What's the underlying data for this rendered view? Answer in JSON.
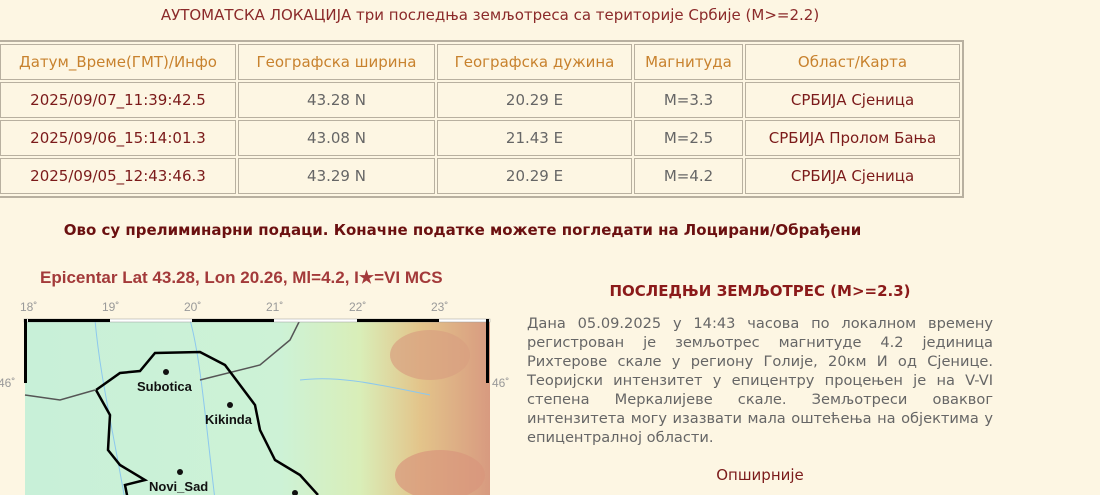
{
  "header": {
    "title": "АУТОМАТСКА ЛОКАЦИЈА три последња земљотреса са територије Србије (М>=2.2)"
  },
  "table": {
    "columns": [
      "Датум_Време(ГМТ)/Инфо",
      "Географска ширина",
      "Географска дужина",
      "Магнитуда",
      "Област/Карта"
    ],
    "rows": [
      [
        "2025/09/07_11:39:42.5",
        "43.28 N",
        "20.29 E",
        "M=3.3",
        "СРБИЈА Сјеница"
      ],
      [
        "2025/09/06_15:14:01.3",
        "43.08 N",
        "21.43 E",
        "M=2.5",
        "СРБИЈА Пролом Бања"
      ],
      [
        "2025/09/05_12:43:46.3",
        "43.29 N",
        "20.29 E",
        "M=4.2",
        "СРБИЈА Сјеница"
      ]
    ]
  },
  "note": "Ово су прелиминарни подаци. Коначне податке можете погледати на Лоцирани/Обрађени",
  "map": {
    "title": "Epicentar Lat 43.28, Lon 20.26, Ml=4.2, I★=VI MCS",
    "lon_ticks": [
      "18˚",
      "19˚",
      "20˚",
      "21˚",
      "22˚",
      "23˚"
    ],
    "lat_label": "46˚",
    "cities": [
      "Subotica",
      "Kikinda",
      "Novi_Sad"
    ]
  },
  "last": {
    "heading": "ПОСЛЕДЊИ ЗЕМЉОТРЕС (М>=2.3)",
    "text": "Дана 05.09.2025 у 14:43 часова по локалном времену регистрован је земљотрес магнитуде 4.2 јединица Рихтерове скале у региону Голије, 20км И од Сјенице. Теоријски интензитет у епицентру процењен је на V-VI степена Меркалијеве скале. Земљотреси оваквог интензитета могу изазвати мала оштећења на објектима у епицентралној области.",
    "more": "Опширније"
  }
}
